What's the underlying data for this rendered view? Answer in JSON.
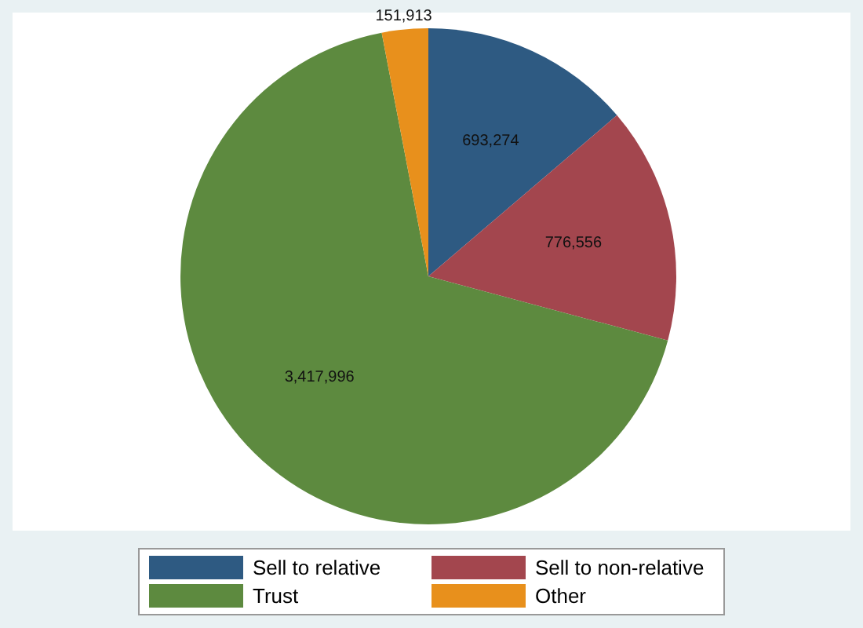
{
  "chart_data": {
    "type": "pie",
    "categories": [
      "Sell to relative",
      "Sell to non-relative",
      "Trust",
      "Other"
    ],
    "values": [
      693274,
      776556,
      3417996,
      151913
    ],
    "colors": [
      "#2e5a82",
      "#a3464e",
      "#5d8a3f",
      "#e8901c"
    ],
    "value_labels": [
      "693,274",
      "776,556",
      "3,417,996",
      "151,913"
    ],
    "legend": "bottom"
  }
}
